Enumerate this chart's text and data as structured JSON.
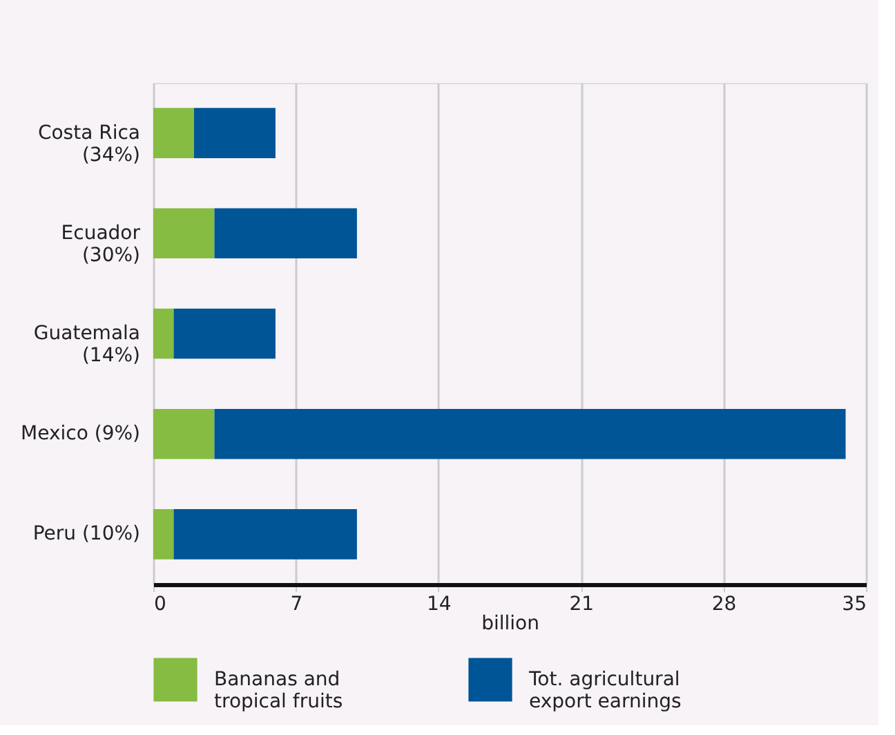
{
  "chart_data": {
    "type": "bar",
    "orientation": "horizontal",
    "stacked": true,
    "categories": [
      "Costa Rica (34%)",
      "Ecuador (30%)",
      "Guatemala (14%)",
      "Mexico (9%)",
      "Peru (10%)"
    ],
    "series": [
      {
        "name": "Bananas and tropical fruits",
        "color": "#86bc41",
        "values": [
          2,
          3,
          1,
          3,
          1
        ]
      },
      {
        "name": "Tot. agricultural export earnings",
        "color": "#005596",
        "values": [
          4,
          7,
          5,
          31,
          9
        ]
      }
    ],
    "xlabel": "billion",
    "xlim": [
      0,
      35
    ],
    "xticks": [
      0,
      7,
      14,
      21,
      28,
      35
    ],
    "grid": "x",
    "legend": "bottom"
  }
}
